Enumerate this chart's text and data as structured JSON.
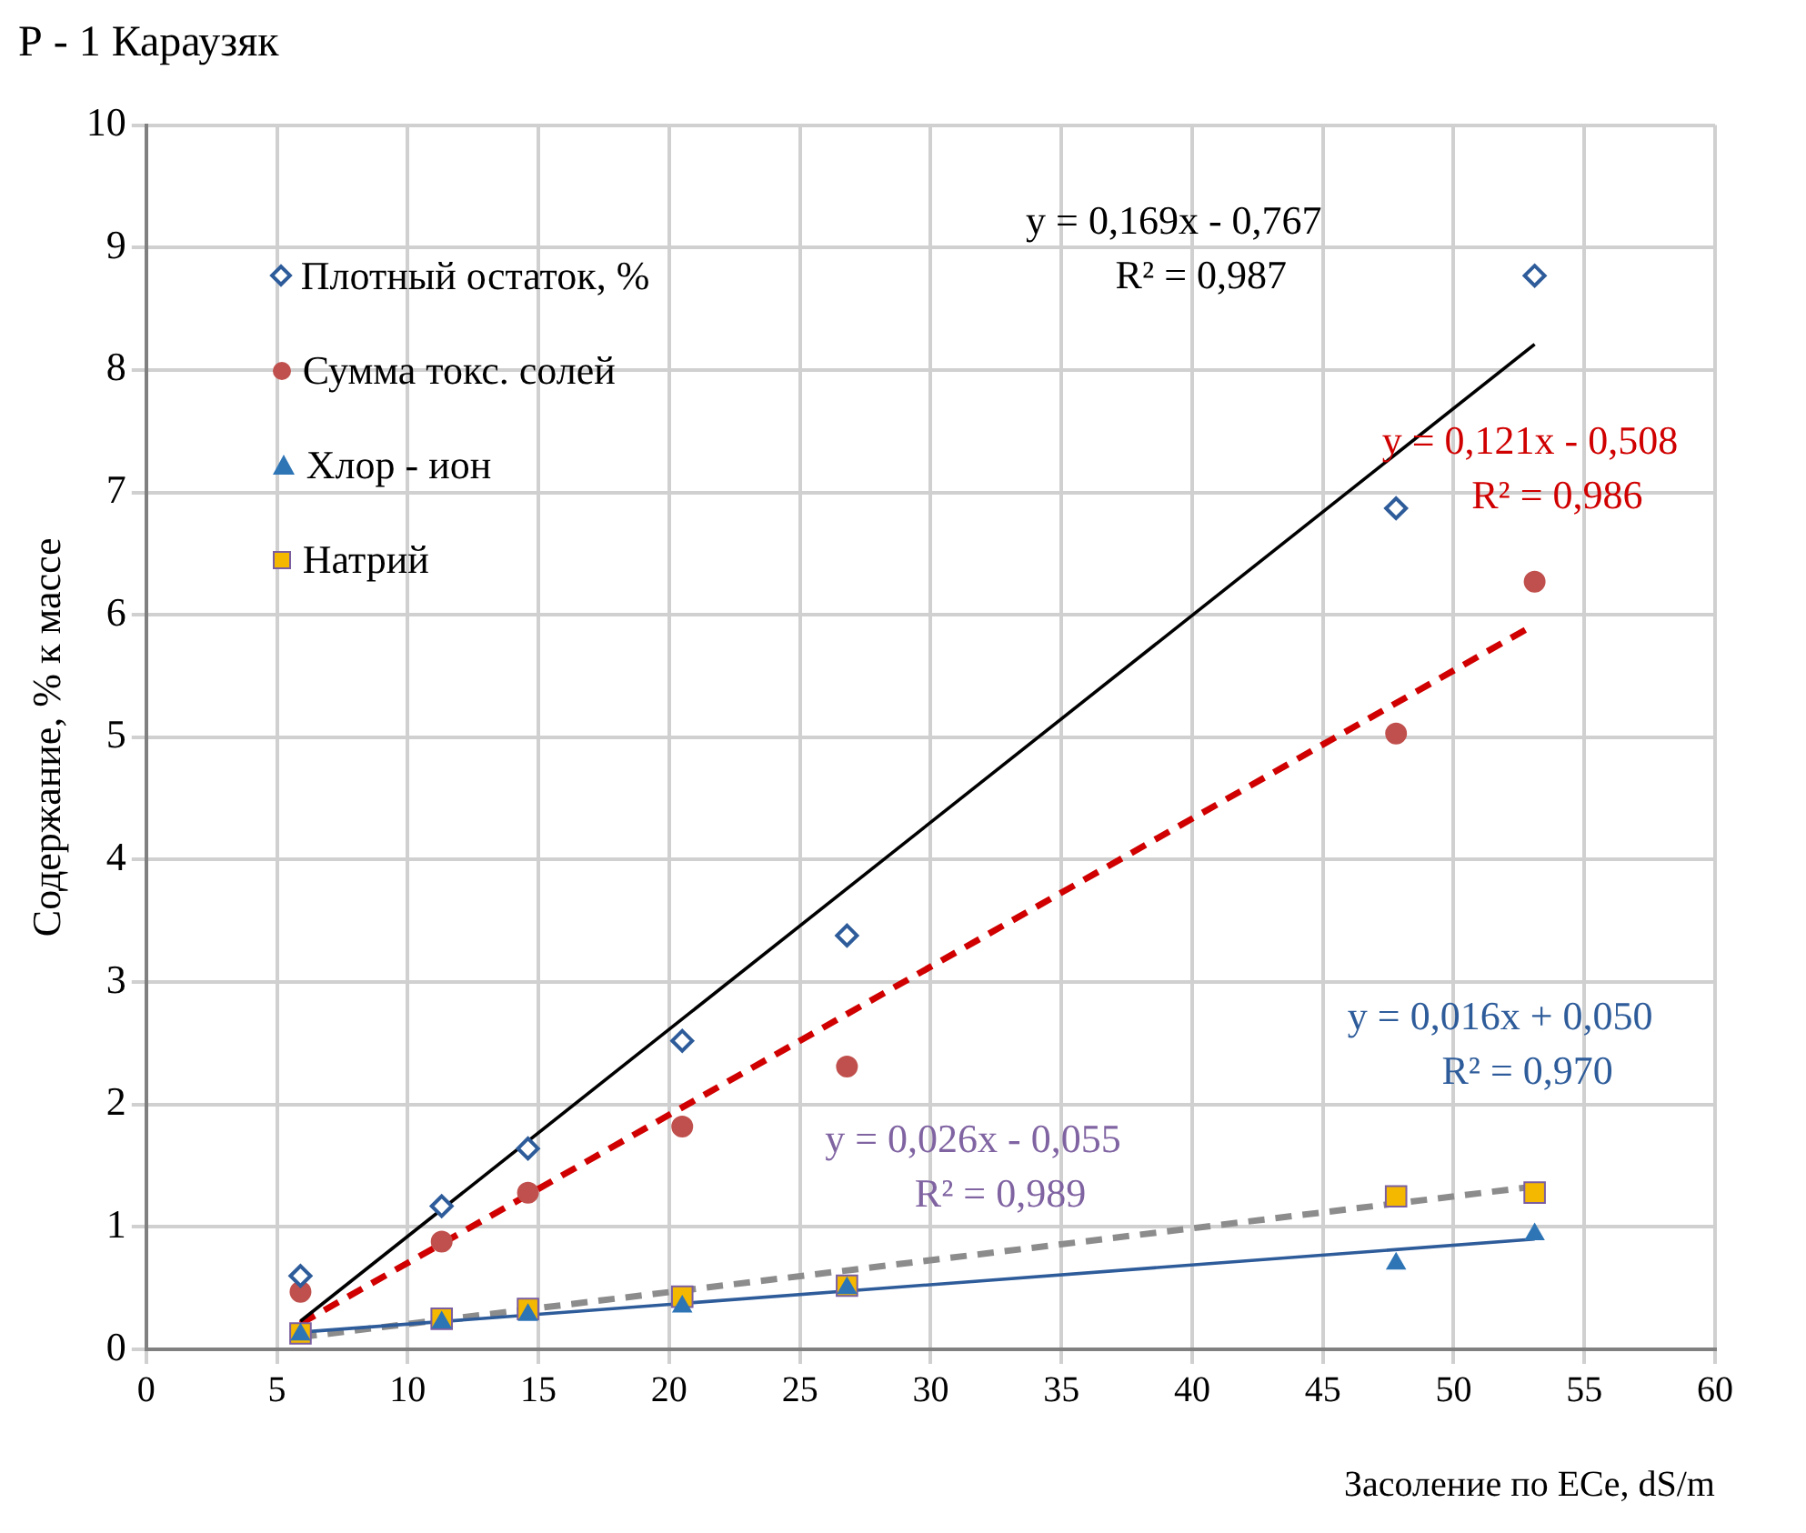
{
  "chart_data": {
    "type": "scatter",
    "title": "Р - 1 Караузяк",
    "xlabel": "Засоление по ECe, dS/m",
    "ylabel": "Содержание, % к массе",
    "x": [
      5.9,
      11.3,
      14.6,
      20.5,
      26.8,
      47.8,
      53.1
    ],
    "xlim": [
      0,
      60
    ],
    "xticks": [
      0,
      5,
      10,
      15,
      20,
      25,
      30,
      35,
      40,
      45,
      50,
      55,
      60
    ],
    "ylim": [
      0,
      10
    ],
    "yticks": [
      0,
      1,
      2,
      3,
      4,
      5,
      6,
      7,
      8,
      9,
      10
    ],
    "grid": true,
    "legend": "top left",
    "series": [
      {
        "name": "Плотный остаток, %",
        "color": "#2e5c9a",
        "marker": "diamond",
        "values": [
          0.6,
          1.17,
          1.64,
          2.52,
          3.38,
          6.87,
          8.77
        ]
      },
      {
        "name": "Сумма токс. солей",
        "color": "#c0504d",
        "marker": "circle",
        "values": [
          0.47,
          0.88,
          1.28,
          1.82,
          2.31,
          5.03,
          6.27
        ]
      },
      {
        "name": "Хлор - ион",
        "color": "#2e75b6",
        "marker": "triangle",
        "values": [
          0.12,
          0.22,
          0.28,
          0.35,
          0.5,
          0.7,
          0.94
        ]
      },
      {
        "name": "Натрий",
        "color": "#f5b800",
        "marker": "square",
        "values": [
          0.13,
          0.25,
          0.33,
          0.43,
          0.52,
          1.25,
          1.28
        ]
      },
      {
        "type": "line",
        "color": "#000000",
        "line_style": "solid",
        "values": [
          0.23,
          null,
          null,
          null,
          null,
          null,
          8.21
        ]
      },
      {
        "type": "line",
        "color": "#d00000",
        "line_style": "dashed",
        "values": [
          0.21,
          null,
          null,
          null,
          null,
          null,
          5.92
        ]
      },
      {
        "type": "line",
        "color": "#2e5c9a",
        "line_style": "solid",
        "values": [
          0.14,
          null,
          null,
          null,
          null,
          null,
          0.9
        ]
      },
      {
        "type": "line",
        "color": "#8c8c8c",
        "line_style": "dashed",
        "values": [
          0.1,
          null,
          null,
          null,
          null,
          null,
          1.33
        ]
      }
    ],
    "annotations": [
      "y = 0,169x - 0,767\nR² = 0,987",
      "y = 0,121x - 0,508\nR² = 0,986",
      "y = 0,016x + 0,050\nR² = 0,970",
      "y = 0,026x - 0,055\nR² = 0,989"
    ]
  }
}
